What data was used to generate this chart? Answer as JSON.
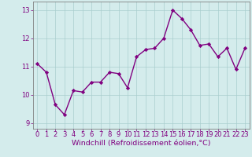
{
  "x": [
    0,
    1,
    2,
    3,
    4,
    5,
    6,
    7,
    8,
    9,
    10,
    11,
    12,
    13,
    14,
    15,
    16,
    17,
    18,
    19,
    20,
    21,
    22,
    23
  ],
  "y": [
    11.1,
    10.8,
    9.65,
    9.3,
    10.15,
    10.1,
    10.45,
    10.45,
    10.8,
    10.75,
    10.25,
    11.35,
    11.6,
    11.65,
    12.0,
    13.0,
    12.7,
    12.3,
    11.75,
    11.8,
    11.35,
    11.65,
    10.9,
    11.65
  ],
  "line_color": "#800080",
  "marker": "D",
  "marker_size": 2.2,
  "linewidth": 1.0,
  "xlabel": "Windchill (Refroidissement éolien,°C)",
  "xlabel_fontsize": 6.8,
  "xlim": [
    -0.5,
    23.5
  ],
  "ylim": [
    8.8,
    13.3
  ],
  "yticks": [
    9,
    10,
    11,
    12,
    13
  ],
  "xticks": [
    0,
    1,
    2,
    3,
    4,
    5,
    6,
    7,
    8,
    9,
    10,
    11,
    12,
    13,
    14,
    15,
    16,
    17,
    18,
    19,
    20,
    21,
    22,
    23
  ],
  "grid_color": "#aacece",
  "bg_color": "#d4ecec",
  "tick_fontsize": 6.0,
  "label_color": "#800080",
  "spine_color": "#808080"
}
